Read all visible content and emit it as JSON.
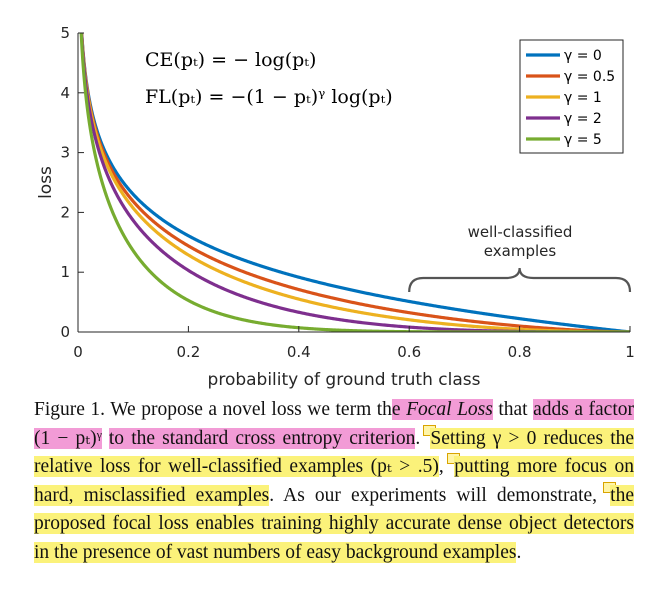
{
  "chart_data": {
    "type": "line",
    "xlabel": "probability of ground truth class",
    "ylabel": "loss",
    "xlim": [
      0,
      1
    ],
    "ylim": [
      0,
      5
    ],
    "x_ticks": [
      "0",
      "0.2",
      "0.4",
      "0.6",
      "0.8",
      "1"
    ],
    "y_ticks": [
      "0",
      "1",
      "2",
      "3",
      "4",
      "5"
    ],
    "grid": false,
    "legend_position": "top-right",
    "series": [
      {
        "name": "γ = 0",
        "gamma": 0,
        "color": "#0072BD"
      },
      {
        "name": "γ = 0.5",
        "gamma": 0.5,
        "color": "#D95319"
      },
      {
        "name": "γ = 1",
        "gamma": 1,
        "color": "#EDB120"
      },
      {
        "name": "γ = 2",
        "gamma": 2,
        "color": "#7E2F8E"
      },
      {
        "name": "γ = 5",
        "gamma": 5,
        "color": "#77AC30"
      }
    ],
    "formulas": {
      "ce": "CE(pₜ) = − log(pₜ)",
      "fl": "FL(pₜ) = −(1 − pₜ)ᵞ log(pₜ)"
    },
    "annotation": {
      "line1": "well-classified",
      "line2": "examples",
      "x_range": [
        0.6,
        1
      ]
    }
  },
  "caption": {
    "s1": "Figure 1. We propose a novel loss we term th",
    "s2": "e ",
    "s3": "Focal Loss",
    "s4": " that",
    "s5": "adds a factor (1 − pₜ)ᵞ",
    "s6": " ",
    "s7": "to the standard cross entropy criterion",
    "s8": ". ",
    "s9": "Setting γ > 0 reduces the relative loss for well-classified examples (pₜ > .5)",
    "s10": ", ",
    "s11": "putting more focus on hard, misclassified examples",
    "s12": ". As our experiments will demonstrate, ",
    "s13": "the proposed focal loss enables training highly accurate dense object detectors in the presence of vast numbers of easy background examples",
    "s14": "."
  }
}
